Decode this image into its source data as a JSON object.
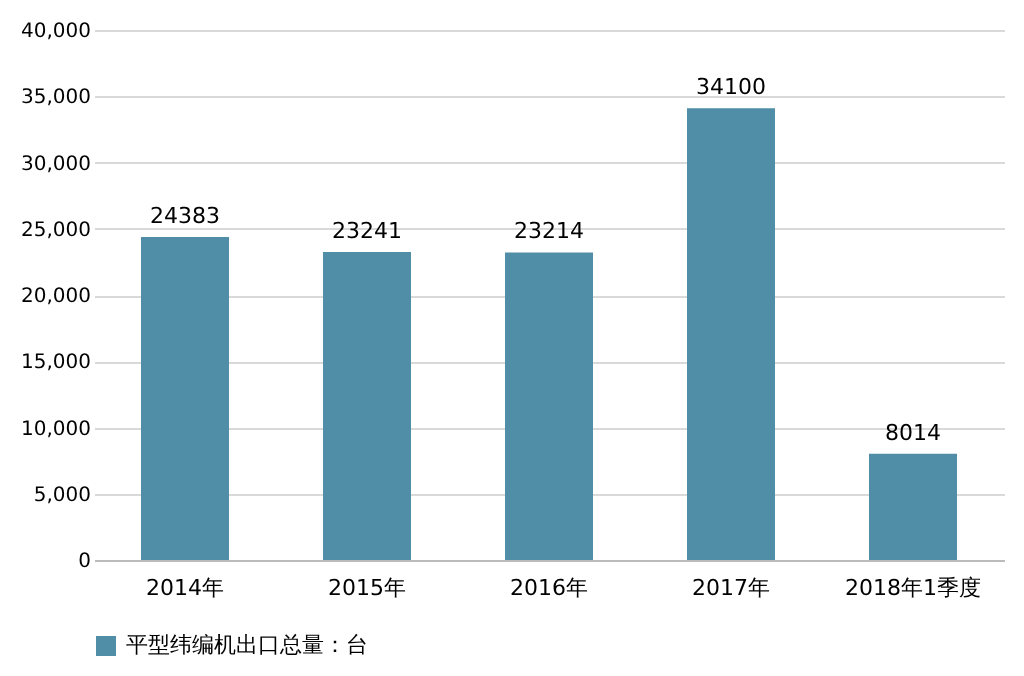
{
  "chart_data": {
    "type": "bar",
    "categories": [
      "2014年",
      "2015年",
      "2016年",
      "2017年",
      "2018年1季度"
    ],
    "series": [
      {
        "name": "平型纬编机出口总量：台",
        "color": "#4f8ea6",
        "values": [
          24383,
          23241,
          23214,
          34100,
          8014
        ]
      }
    ],
    "ylim": [
      0,
      40000
    ],
    "yticks": [
      {
        "value": 0,
        "label": "0"
      },
      {
        "value": 5000,
        "label": "5,000"
      },
      {
        "value": 10000,
        "label": "10,000"
      },
      {
        "value": 15000,
        "label": "15,000"
      },
      {
        "value": 20000,
        "label": "20,000"
      },
      {
        "value": 25000,
        "label": "25,000"
      },
      {
        "value": 30000,
        "label": "30,000"
      },
      {
        "value": 35000,
        "label": "35,000"
      },
      {
        "value": 40000,
        "label": "40,000"
      }
    ],
    "grid": "y",
    "legend": "bottom",
    "data_labels": true
  }
}
